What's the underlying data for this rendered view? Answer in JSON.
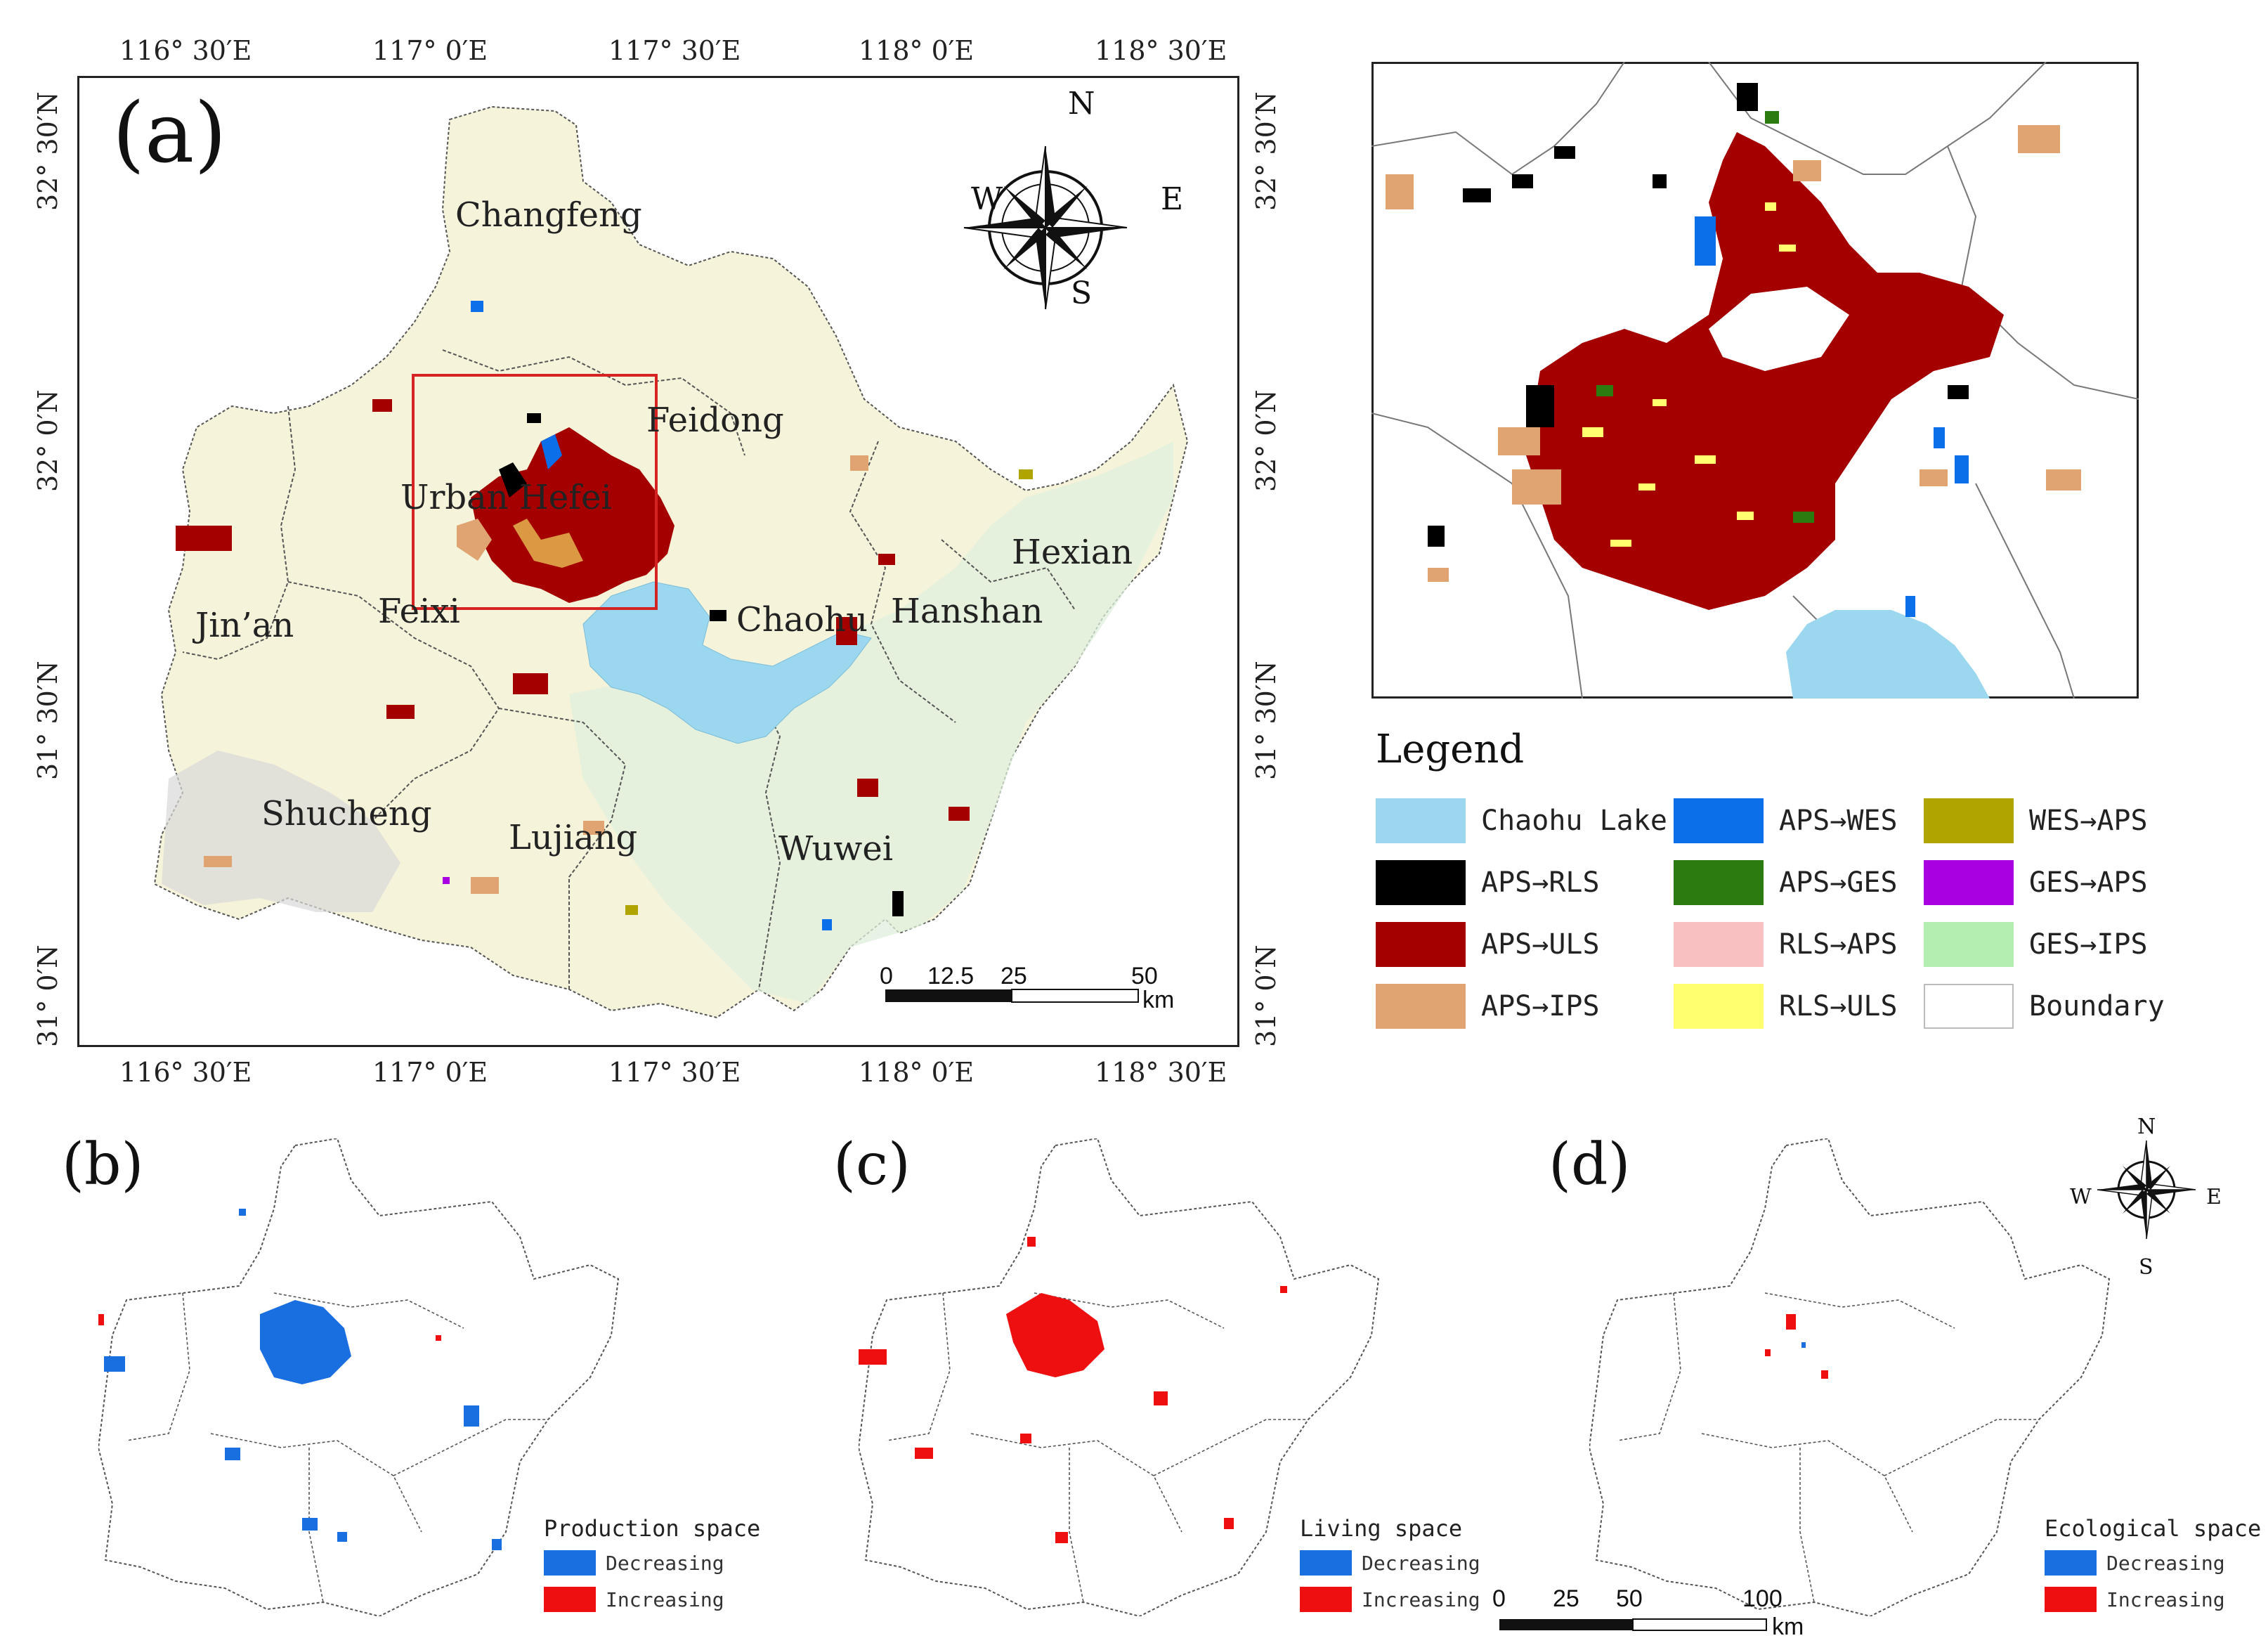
{
  "panels": {
    "a": {
      "letter": "(a)"
    },
    "b": {
      "letter": "(b)"
    },
    "c": {
      "letter": "(c)"
    },
    "d": {
      "letter": "(d)"
    }
  },
  "axes": {
    "top_ticks": [
      "116° 30′E",
      "117° 0′E",
      "117° 30′E",
      "118° 0′E",
      "118° 30′E"
    ],
    "bottom_ticks": [
      "116° 30′E",
      "117° 0′E",
      "117° 30′E",
      "118° 0′E",
      "118° 30′E"
    ],
    "left_ticks": [
      "32° 30′N",
      "32° 0′N",
      "31° 30′N",
      "31° 0′N"
    ],
    "right_ticks": [
      "32° 30′N",
      "32° 0′N",
      "31° 30′N",
      "31° 0′N"
    ]
  },
  "places": {
    "changfeng": "Changfeng",
    "feidong": "Feidong",
    "urban_hefei": "Urban Hefei",
    "feixi": "Feixi",
    "jinan": "Jin’an",
    "chaohu": "Chaohu",
    "hanshan": "Hanshan",
    "hexian": "Hexian",
    "shucheng": "Shucheng",
    "lujiang": "Lujiang",
    "wuwei": "Wuwei"
  },
  "compass": {
    "n": "N",
    "s": "S",
    "e": "E",
    "w": "W"
  },
  "scale_a": {
    "ticks": [
      "0",
      "12.5",
      "25",
      "50"
    ],
    "unit": "km"
  },
  "scale_d": {
    "ticks": [
      "0",
      "25",
      "50",
      "100"
    ],
    "unit": "km"
  },
  "legend": {
    "title": "Legend",
    "items": [
      {
        "label": "Chaohu Lake",
        "color": "#9bd8f0"
      },
      {
        "label": "APS→RLS",
        "color": "#000000"
      },
      {
        "label": "APS→ULS",
        "color": "#a50000"
      },
      {
        "label": "APS→IPS",
        "color": "#e0a472"
      },
      {
        "label": "APS→WES",
        "color": "#0a6fe8"
      },
      {
        "label": "APS→GES",
        "color": "#2a7b10"
      },
      {
        "label": "RLS→APS",
        "color": "#f8c0c0"
      },
      {
        "label": "RLS→ULS",
        "color": "#ffff70"
      },
      {
        "label": "WES→APS",
        "color": "#b0a400"
      },
      {
        "label": "GES→APS",
        "color": "#a800e0"
      },
      {
        "label": "GES→IPS",
        "color": "#b4eeb0"
      },
      {
        "label": "Boundary",
        "color": "#ffffff"
      }
    ]
  },
  "sub_legends": {
    "b": {
      "title": "Production space",
      "decreasing": "Decreasing",
      "increasing": "Increasing"
    },
    "c": {
      "title": "Living space",
      "decreasing": "Decreasing",
      "increasing": "Increasing"
    },
    "d": {
      "title": "Ecological space",
      "decreasing": "Decreasing",
      "increasing": "Increasing"
    }
  },
  "colors": {
    "decreasing": "#1a6fe0",
    "increasing": "#ee1010"
  }
}
